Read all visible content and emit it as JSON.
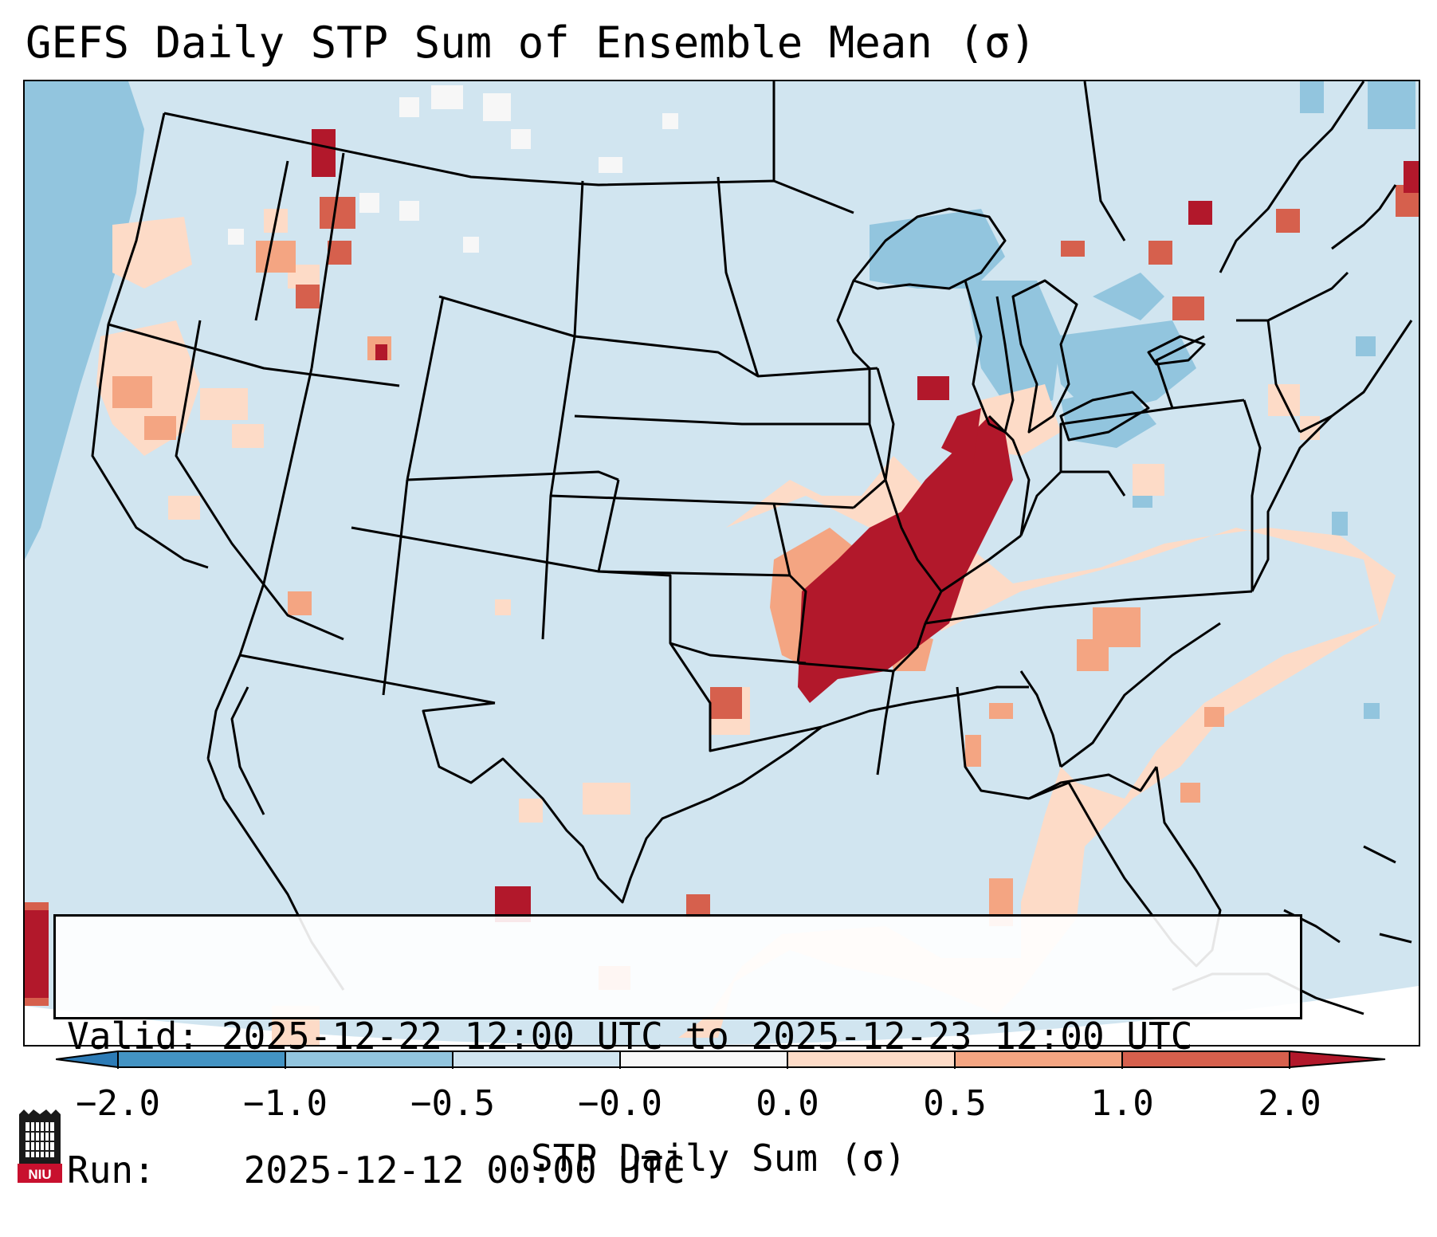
{
  "title": "GEFS Daily STP Sum of Ensemble Mean (σ)",
  "info": {
    "valid_label": "Valid:",
    "valid_value": "2025-12-22 12:00 UTC to 2025-12-23 12:00 UTC",
    "run_label": "Run:",
    "run_value": "2025-12-12 00:00 UTC"
  },
  "colorbar": {
    "label": "STP Daily Sum (σ)",
    "ticks": [
      "−2.0",
      "−1.0",
      "−0.5",
      "−0.0",
      "0.0",
      "0.5",
      "1.0",
      "2.0"
    ],
    "colors": {
      "lt_-2": "#2c7bb6",
      "-2_-1": "#4393c3",
      "-1_-0.5": "#92c5de",
      "-0.5_0": "#d1e5f0",
      "0_0": "#f7f7f7",
      "0_0.5": "#fddbc7",
      "0.5_1": "#f4a582",
      "1_2": "#d6604d",
      "gt_2": "#b2182b"
    }
  },
  "map": {
    "projection": "lambert-conformal-conus",
    "background_color": "#d1e5f0",
    "outside_domain_color": "#ffffff",
    "borders": [
      "state-lines",
      "country-borders",
      "coastlines",
      "great-lakes"
    ]
  },
  "logo": {
    "text": "NIU",
    "icon": "niu-huskie-tower-icon",
    "color": "#c8102e"
  }
}
